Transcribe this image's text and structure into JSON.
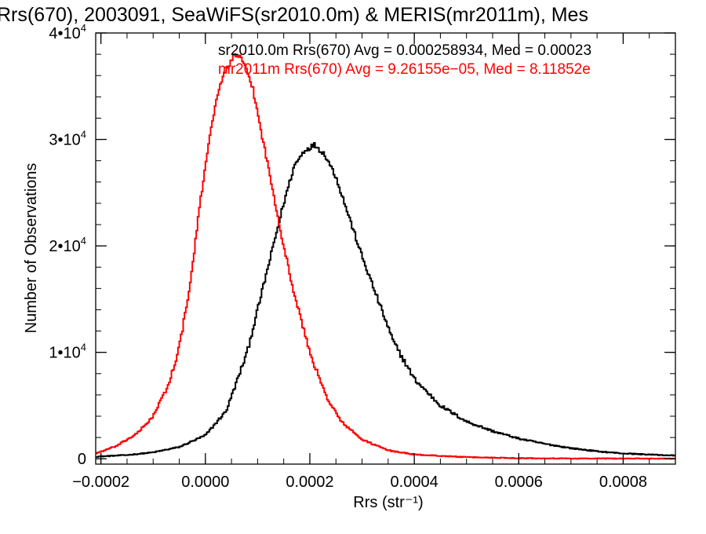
{
  "chart_data": {
    "type": "line",
    "title": "Rrs(670), 2003091, SeaWiFS(sr2010.0m) & MERIS(mr2011m), Mes",
    "xlabel": "Rrs (str⁻¹)",
    "ylabel": "Number of Observations",
    "xlim": [
      -0.00021,
      0.0009
    ],
    "ylim": [
      -500,
      40000
    ],
    "x_ticks": [
      -0.0002,
      0.0,
      0.0002,
      0.0004,
      0.0006,
      0.0008
    ],
    "x_tick_labels": [
      "−0.0002",
      "0.0000",
      "0.0002",
      "0.0004",
      "0.0006",
      "0.0008"
    ],
    "y_ticks": [
      0,
      10000,
      20000,
      30000,
      40000
    ],
    "y_tick_labels": [
      {
        "mant": "0",
        "exp": ""
      },
      {
        "mant": "1•10",
        "exp": "4"
      },
      {
        "mant": "2•10",
        "exp": "4"
      },
      {
        "mant": "3•10",
        "exp": "4"
      },
      {
        "mant": "4•10",
        "exp": "4"
      }
    ],
    "step": true,
    "grid": false,
    "legend_position": "top",
    "series": [
      {
        "name": "sr2010.0m Rrs(670) Avg = 0.000258934, Med = 0.00023",
        "color": "#000000",
        "points": [
          [
            -0.00021,
            200
          ],
          [
            -0.00015,
            350
          ],
          [
            -0.0001,
            600
          ],
          [
            -5e-05,
            1100
          ],
          [
            0.0,
            2200
          ],
          [
            4e-05,
            4500
          ],
          [
            8e-05,
            10000
          ],
          [
            0.00012,
            18000
          ],
          [
            0.00015,
            24000
          ],
          [
            0.00017,
            27500
          ],
          [
            0.00019,
            29000
          ],
          [
            0.00021,
            29500
          ],
          [
            0.00023,
            28500
          ],
          [
            0.00025,
            26500
          ],
          [
            0.00027,
            23500
          ],
          [
            0.0003,
            19000
          ],
          [
            0.00033,
            15000
          ],
          [
            0.00036,
            11000
          ],
          [
            0.0004,
            7500
          ],
          [
            0.00045,
            5000
          ],
          [
            0.0005,
            3500
          ],
          [
            0.00055,
            2600
          ],
          [
            0.0006,
            1900
          ],
          [
            0.00065,
            1400
          ],
          [
            0.0007,
            1000
          ],
          [
            0.00075,
            700
          ],
          [
            0.0008,
            500
          ],
          [
            0.0009,
            300
          ]
        ]
      },
      {
        "name": "mr2011m Rrs(670) Avg = 9.26155e−05, Med = 8.11852e",
        "color": "#ff0000",
        "points": [
          [
            -0.00021,
            500
          ],
          [
            -0.00017,
            1200
          ],
          [
            -0.00013,
            2400
          ],
          [
            -0.0001,
            4000
          ],
          [
            -7e-05,
            7000
          ],
          [
            -5e-05,
            10500
          ],
          [
            -3e-05,
            16000
          ],
          [
            -1e-05,
            24000
          ],
          [
            1e-05,
            31000
          ],
          [
            3e-05,
            35500
          ],
          [
            5e-05,
            37500
          ],
          [
            6e-05,
            38000
          ],
          [
            7e-05,
            37500
          ],
          [
            9e-05,
            35000
          ],
          [
            0.00011,
            30000
          ],
          [
            0.00013,
            25000
          ],
          [
            0.00015,
            20000
          ],
          [
            0.00017,
            15500
          ],
          [
            0.0002,
            10000
          ],
          [
            0.00023,
            6000
          ],
          [
            0.00026,
            3500
          ],
          [
            0.0003,
            1800
          ],
          [
            0.00035,
            800
          ],
          [
            0.0004,
            400
          ],
          [
            0.0005,
            150
          ],
          [
            0.0006,
            60
          ],
          [
            0.0007,
            30
          ],
          [
            0.0009,
            20
          ]
        ]
      }
    ]
  }
}
